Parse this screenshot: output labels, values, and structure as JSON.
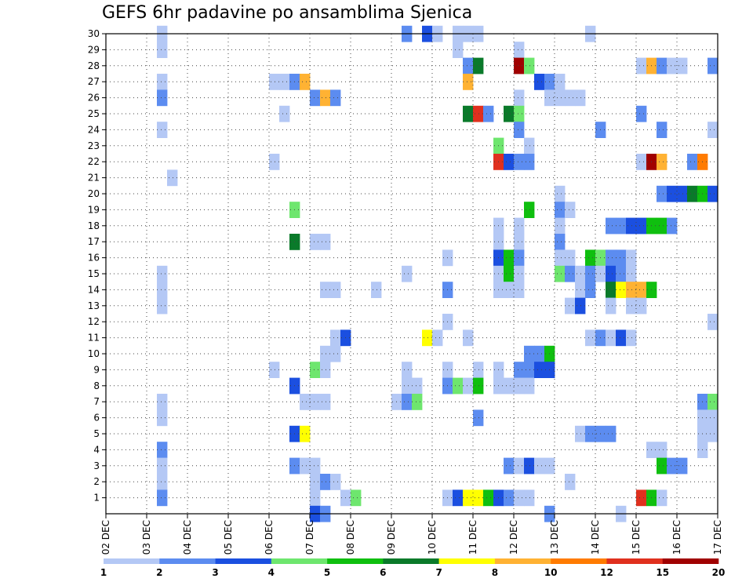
{
  "chart_data": {
    "type": "heatmap",
    "title": "GEFS 6hr padavine po ansamblima Sjenica",
    "xlabel": "",
    "ylabel": "",
    "x_tick_labels": [
      "02 DEC",
      "03 DEC",
      "04 DEC",
      "05 DEC",
      "06 DEC",
      "07 DEC",
      "08 DEC",
      "09 DEC",
      "10 DEC",
      "11 DEC",
      "12 DEC",
      "13 DEC",
      "14 DEC",
      "15 DEC",
      "16 DEC",
      "17 DEC"
    ],
    "x_range_days": [
      2,
      17
    ],
    "y_tick_labels": [
      "1",
      "2",
      "3",
      "4",
      "5",
      "6",
      "7",
      "8",
      "9",
      "10",
      "11",
      "12",
      "13",
      "14",
      "15",
      "16",
      "17",
      "18",
      "19",
      "20",
      "21",
      "22",
      "23",
      "24",
      "25",
      "26",
      "27",
      "28",
      "29",
      "30"
    ],
    "y_range": [
      0,
      30
    ],
    "grid": "dotted",
    "colorbar": {
      "levels": [
        1,
        2,
        3,
        4,
        5,
        6,
        7,
        8,
        10,
        12,
        15,
        20
      ],
      "labels": [
        "1",
        "2",
        "3",
        "4",
        "5",
        "6",
        "7",
        "8",
        "10",
        "12",
        "15",
        "20"
      ],
      "colors": [
        "#b4c8f5",
        "#5c8cf0",
        "#1b4fe0",
        "#6ee66e",
        "#0fbf0f",
        "#0a7a2a",
        "#ffff00",
        "#ffb233",
        "#ff7b00",
        "#e0301e",
        "#a00000"
      ]
    },
    "cells": [
      [
        3.25,
        30,
        0
      ],
      [
        3.25,
        29,
        0
      ],
      [
        3.25,
        27,
        0
      ],
      [
        3.25,
        26,
        1
      ],
      [
        3.25,
        24,
        0
      ],
      [
        3.25,
        15,
        0
      ],
      [
        3.25,
        14,
        0
      ],
      [
        3.25,
        13,
        0
      ],
      [
        3.25,
        7,
        0
      ],
      [
        3.25,
        6,
        0
      ],
      [
        3.25,
        4,
        1
      ],
      [
        3.25,
        3,
        0
      ],
      [
        3.25,
        2,
        0
      ],
      [
        3.25,
        1,
        1
      ],
      [
        3.5,
        21,
        0
      ],
      [
        6.0,
        27,
        0
      ],
      [
        6.0,
        22,
        0
      ],
      [
        6.0,
        9,
        0
      ],
      [
        6.25,
        27,
        0
      ],
      [
        6.25,
        25,
        0
      ],
      [
        6.5,
        27,
        1
      ],
      [
        6.5,
        19,
        3
      ],
      [
        6.5,
        17,
        5
      ],
      [
        6.5,
        8,
        2
      ],
      [
        6.5,
        5,
        2
      ],
      [
        6.5,
        3,
        1
      ],
      [
        6.75,
        27,
        7
      ],
      [
        6.75,
        7,
        0
      ],
      [
        6.75,
        5,
        6
      ],
      [
        6.75,
        3,
        0
      ],
      [
        7.0,
        26,
        1
      ],
      [
        7.0,
        17,
        0
      ],
      [
        7.0,
        9,
        3
      ],
      [
        7.0,
        7,
        0
      ],
      [
        7.0,
        3,
        0
      ],
      [
        7.0,
        2,
        0
      ],
      [
        7.0,
        1,
        0
      ],
      [
        7.0,
        0,
        2
      ],
      [
        7.25,
        26,
        7
      ],
      [
        7.25,
        17,
        0
      ],
      [
        7.25,
        14,
        0
      ],
      [
        7.25,
        10,
        0
      ],
      [
        7.25,
        9,
        0
      ],
      [
        7.25,
        7,
        0
      ],
      [
        7.25,
        2,
        1
      ],
      [
        7.25,
        0,
        1
      ],
      [
        7.5,
        26,
        1
      ],
      [
        7.5,
        14,
        0
      ],
      [
        7.5,
        11,
        0
      ],
      [
        7.5,
        10,
        0
      ],
      [
        7.5,
        2,
        0
      ],
      [
        7.75,
        11,
        2
      ],
      [
        7.75,
        1,
        0
      ],
      [
        8.0,
        1,
        3
      ],
      [
        8.5,
        14,
        0
      ],
      [
        9.0,
        7,
        0
      ],
      [
        9.25,
        30,
        1
      ],
      [
        9.25,
        15,
        0
      ],
      [
        9.25,
        9,
        0
      ],
      [
        9.25,
        8,
        0
      ],
      [
        9.25,
        7,
        1
      ],
      [
        9.5,
        8,
        0
      ],
      [
        9.5,
        7,
        3
      ],
      [
        9.75,
        30,
        2
      ],
      [
        9.75,
        11,
        6
      ],
      [
        10.0,
        30,
        0
      ],
      [
        10.0,
        11,
        0
      ],
      [
        10.25,
        16,
        0
      ],
      [
        10.25,
        14,
        1
      ],
      [
        10.25,
        12,
        0
      ],
      [
        10.25,
        9,
        0
      ],
      [
        10.25,
        8,
        1
      ],
      [
        10.25,
        1,
        0
      ],
      [
        10.5,
        30,
        0
      ],
      [
        10.5,
        29,
        0
      ],
      [
        10.5,
        8,
        3
      ],
      [
        10.5,
        1,
        2
      ],
      [
        10.75,
        30,
        0
      ],
      [
        10.75,
        28,
        1
      ],
      [
        10.75,
        27,
        7
      ],
      [
        10.75,
        25,
        5
      ],
      [
        10.75,
        11,
        0
      ],
      [
        10.75,
        8,
        0
      ],
      [
        10.75,
        1,
        6
      ],
      [
        11.0,
        30,
        0
      ],
      [
        11.0,
        28,
        5
      ],
      [
        11.0,
        25,
        9
      ],
      [
        11.0,
        9,
        0
      ],
      [
        11.0,
        8,
        4
      ],
      [
        11.0,
        6,
        1
      ],
      [
        11.0,
        1,
        6
      ],
      [
        11.25,
        25,
        1
      ],
      [
        11.25,
        1,
        4
      ],
      [
        11.5,
        23,
        3
      ],
      [
        11.5,
        22,
        9
      ],
      [
        11.5,
        18,
        0
      ],
      [
        11.5,
        17,
        0
      ],
      [
        11.5,
        16,
        2
      ],
      [
        11.5,
        15,
        0
      ],
      [
        11.5,
        14,
        0
      ],
      [
        11.5,
        9,
        0
      ],
      [
        11.5,
        8,
        0
      ],
      [
        11.5,
        1,
        2
      ],
      [
        11.75,
        25,
        5
      ],
      [
        11.75,
        22,
        2
      ],
      [
        11.75,
        16,
        4
      ],
      [
        11.75,
        15,
        4
      ],
      [
        11.75,
        14,
        0
      ],
      [
        11.75,
        8,
        0
      ],
      [
        11.75,
        3,
        1
      ],
      [
        11.75,
        1,
        1
      ],
      [
        12.0,
        29,
        0
      ],
      [
        12.0,
        28,
        10
      ],
      [
        12.0,
        26,
        0
      ],
      [
        12.0,
        25,
        3
      ],
      [
        12.0,
        24,
        1
      ],
      [
        12.0,
        22,
        1
      ],
      [
        12.0,
        18,
        0
      ],
      [
        12.0,
        17,
        0
      ],
      [
        12.0,
        16,
        1
      ],
      [
        12.0,
        15,
        0
      ],
      [
        12.0,
        14,
        0
      ],
      [
        12.0,
        9,
        1
      ],
      [
        12.0,
        8,
        0
      ],
      [
        12.0,
        3,
        0
      ],
      [
        12.0,
        1,
        0
      ],
      [
        12.25,
        28,
        3
      ],
      [
        12.25,
        23,
        0
      ],
      [
        12.25,
        22,
        1
      ],
      [
        12.25,
        19,
        4
      ],
      [
        12.25,
        10,
        1
      ],
      [
        12.25,
        9,
        1
      ],
      [
        12.25,
        8,
        0
      ],
      [
        12.25,
        3,
        2
      ],
      [
        12.25,
        1,
        0
      ],
      [
        12.5,
        27,
        2
      ],
      [
        12.5,
        10,
        1
      ],
      [
        12.5,
        9,
        2
      ],
      [
        12.5,
        3,
        0
      ],
      [
        12.75,
        27,
        1
      ],
      [
        12.75,
        26,
        0
      ],
      [
        12.75,
        10,
        4
      ],
      [
        12.75,
        9,
        2
      ],
      [
        12.75,
        3,
        0
      ],
      [
        12.75,
        0,
        1
      ],
      [
        13.0,
        27,
        0
      ],
      [
        13.0,
        26,
        0
      ],
      [
        13.0,
        20,
        0
      ],
      [
        13.0,
        19,
        1
      ],
      [
        13.0,
        18,
        0
      ],
      [
        13.0,
        17,
        1
      ],
      [
        13.0,
        16,
        0
      ],
      [
        13.0,
        15,
        3
      ],
      [
        13.25,
        26,
        0
      ],
      [
        13.25,
        19,
        0
      ],
      [
        13.25,
        16,
        0
      ],
      [
        13.25,
        15,
        1
      ],
      [
        13.25,
        13,
        0
      ],
      [
        13.25,
        2,
        0
      ],
      [
        13.5,
        26,
        0
      ],
      [
        13.5,
        15,
        0
      ],
      [
        13.5,
        14,
        0
      ],
      [
        13.5,
        13,
        2
      ],
      [
        13.5,
        5,
        0
      ],
      [
        13.75,
        30,
        0
      ],
      [
        13.75,
        16,
        4
      ],
      [
        13.75,
        15,
        1
      ],
      [
        13.75,
        14,
        1
      ],
      [
        13.75,
        11,
        0
      ],
      [
        13.75,
        5,
        1
      ],
      [
        14.0,
        24,
        1
      ],
      [
        14.0,
        16,
        3
      ],
      [
        14.0,
        15,
        0
      ],
      [
        14.0,
        11,
        1
      ],
      [
        14.0,
        5,
        1
      ],
      [
        14.25,
        18,
        1
      ],
      [
        14.25,
        16,
        1
      ],
      [
        14.25,
        15,
        2
      ],
      [
        14.25,
        14,
        5
      ],
      [
        14.25,
        13,
        0
      ],
      [
        14.25,
        11,
        0
      ],
      [
        14.25,
        5,
        1
      ],
      [
        14.5,
        18,
        1
      ],
      [
        14.5,
        16,
        1
      ],
      [
        14.5,
        15,
        1
      ],
      [
        14.5,
        14,
        6
      ],
      [
        14.5,
        11,
        2
      ],
      [
        14.5,
        0,
        0
      ],
      [
        14.75,
        18,
        2
      ],
      [
        14.75,
        16,
        0
      ],
      [
        14.75,
        15,
        0
      ],
      [
        14.75,
        14,
        7
      ],
      [
        14.75,
        13,
        0
      ],
      [
        14.75,
        11,
        0
      ],
      [
        15.0,
        28,
        0
      ],
      [
        15.0,
        25,
        1
      ],
      [
        15.0,
        22,
        0
      ],
      [
        15.0,
        18,
        2
      ],
      [
        15.0,
        14,
        7
      ],
      [
        15.0,
        13,
        0
      ],
      [
        15.0,
        1,
        9
      ],
      [
        15.25,
        28,
        7
      ],
      [
        15.25,
        22,
        10
      ],
      [
        15.25,
        18,
        4
      ],
      [
        15.25,
        14,
        4
      ],
      [
        15.25,
        4,
        0
      ],
      [
        15.25,
        1,
        4
      ],
      [
        15.5,
        28,
        1
      ],
      [
        15.5,
        24,
        1
      ],
      [
        15.5,
        22,
        7
      ],
      [
        15.5,
        20,
        1
      ],
      [
        15.5,
        18,
        4
      ],
      [
        15.5,
        4,
        0
      ],
      [
        15.5,
        3,
        4
      ],
      [
        15.5,
        1,
        0
      ],
      [
        15.75,
        28,
        0
      ],
      [
        15.75,
        20,
        2
      ],
      [
        15.75,
        18,
        1
      ],
      [
        15.75,
        3,
        1
      ],
      [
        16.0,
        28,
        0
      ],
      [
        16.0,
        20,
        2
      ],
      [
        16.0,
        3,
        1
      ],
      [
        16.25,
        22,
        1
      ],
      [
        16.25,
        20,
        5
      ],
      [
        16.5,
        22,
        8
      ],
      [
        16.5,
        20,
        4
      ],
      [
        16.5,
        7,
        1
      ],
      [
        16.5,
        6,
        0
      ],
      [
        16.5,
        5,
        0
      ],
      [
        16.5,
        4,
        0
      ],
      [
        16.75,
        28,
        1
      ],
      [
        16.75,
        24,
        0
      ],
      [
        16.75,
        20,
        2
      ],
      [
        16.75,
        12,
        0
      ],
      [
        16.75,
        7,
        3
      ],
      [
        16.75,
        6,
        0
      ],
      [
        16.75,
        5,
        0
      ]
    ]
  }
}
